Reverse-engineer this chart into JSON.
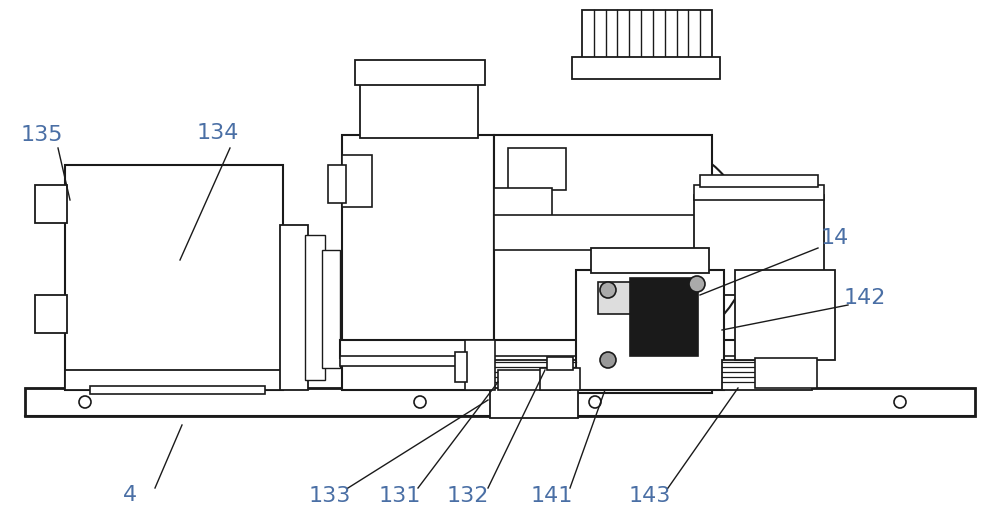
{
  "bg_color": "#ffffff",
  "line_color": "#1a1a1a",
  "label_color": "#4a6fa5",
  "lw": 1.4,
  "lw2": 1.0,
  "fig_w": 10.0,
  "fig_h": 5.23,
  "dpi": 100,
  "label_fontsize": 16
}
